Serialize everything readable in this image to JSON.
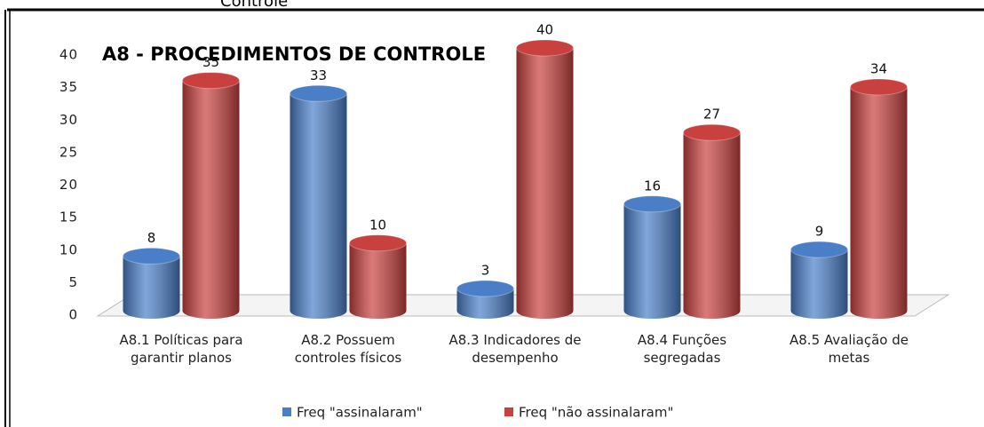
{
  "caption_fragment": "Controle",
  "chart_data": {
    "type": "bar",
    "title": "A8 - PROCEDIMENTOS DE CONTROLE",
    "categories": [
      "A8.1 Políticas para garantir planos",
      "A8.2 Possuem controles físicos",
      "A8.3 Indicadores de desempenho",
      "A8.4 Funções segregadas",
      "A8.5 Avaliação de metas"
    ],
    "series": [
      {
        "name": "Freq \"assinalaram\"",
        "color": "#4a7fc8",
        "values": [
          8,
          33,
          3,
          16,
          9
        ]
      },
      {
        "name": "Freq \"não assinalaram\"",
        "color": "#c9413f",
        "values": [
          35,
          10,
          40,
          27,
          34
        ]
      }
    ],
    "ylim": [
      0,
      40
    ],
    "yticks": [
      0,
      5,
      10,
      15,
      20,
      25,
      30,
      35,
      40
    ],
    "legend": "bottom"
  }
}
